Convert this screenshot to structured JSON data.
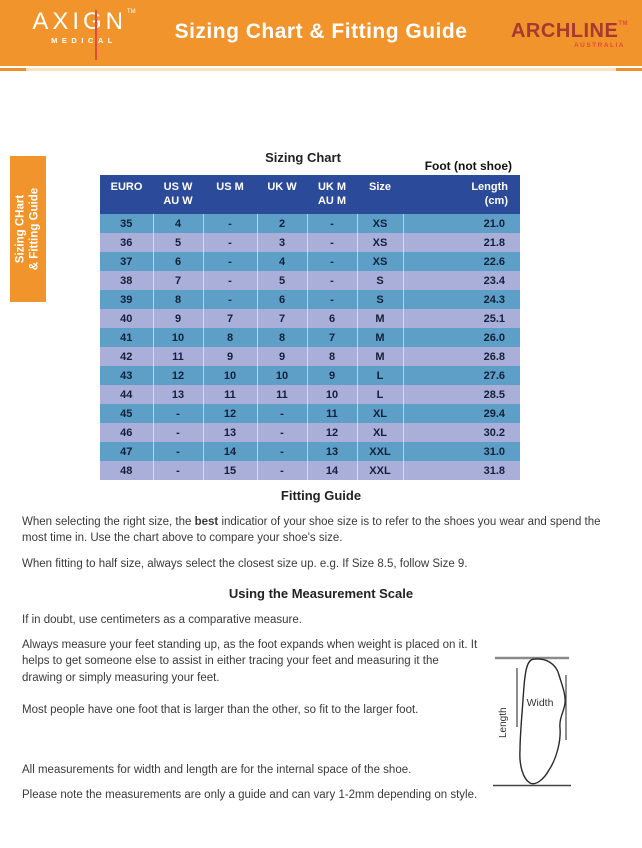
{
  "header": {
    "title": "Sizing Chart & Fitting Guide",
    "brand_left": {
      "name": "AXIGN",
      "tm": "TM",
      "sub": "MEDICAL"
    },
    "brand_right": {
      "name": "ARCHLINE",
      "tm": "TM",
      "sub": "AUSTRALIA"
    }
  },
  "side_tab": {
    "line1": "Sizing CHart",
    "line2": "& Fitting Guide"
  },
  "sizing_chart": {
    "title": "Sizing Chart",
    "foot_note": "Foot (not shoe)",
    "columns": [
      {
        "l1": "EURO",
        "l2": ""
      },
      {
        "l1": "US W",
        "l2": "AU W"
      },
      {
        "l1": "US M",
        "l2": ""
      },
      {
        "l1": "UK W",
        "l2": ""
      },
      {
        "l1": "UK M",
        "l2": "AU M"
      },
      {
        "l1": "Size",
        "l2": ""
      },
      {
        "l1": "Length",
        "l2": "(cm)"
      }
    ],
    "rows": [
      [
        "35",
        "4",
        "-",
        "2",
        "-",
        "XS",
        "21.0"
      ],
      [
        "36",
        "5",
        "-",
        "3",
        "-",
        "XS",
        "21.8"
      ],
      [
        "37",
        "6",
        "-",
        "4",
        "-",
        "XS",
        "22.6"
      ],
      [
        "38",
        "7",
        "-",
        "5",
        "-",
        "S",
        "23.4"
      ],
      [
        "39",
        "8",
        "-",
        "6",
        "-",
        "S",
        "24.3"
      ],
      [
        "40",
        "9",
        "7",
        "7",
        "6",
        "M",
        "25.1"
      ],
      [
        "41",
        "10",
        "8",
        "8",
        "7",
        "M",
        "26.0"
      ],
      [
        "42",
        "11",
        "9",
        "9",
        "8",
        "M",
        "26.8"
      ],
      [
        "43",
        "12",
        "10",
        "10",
        "9",
        "L",
        "27.6"
      ],
      [
        "44",
        "13",
        "11",
        "11",
        "10",
        "L",
        "28.5"
      ],
      [
        "45",
        "-",
        "12",
        "-",
        "11",
        "XL",
        "29.4"
      ],
      [
        "46",
        "-",
        "13",
        "-",
        "12",
        "XL",
        "30.2"
      ],
      [
        "47",
        "-",
        "14",
        "-",
        "13",
        "XXL",
        "31.0"
      ],
      [
        "48",
        "-",
        "15",
        "-",
        "14",
        "XXL",
        "31.8"
      ]
    ]
  },
  "fitting_guide": {
    "heading": "Fitting Guide",
    "p1_pre": "When selecting the right size, the ",
    "p1_bold": "best",
    "p1_post": " indicatior of your shoe size is to refer to the shoes you wear and spend the most time in. Use the chart above to compare your shoe's size.",
    "p2": "When fitting to half size, always select the closest size up. e.g. If Size 8.5, follow Size 9."
  },
  "measurement": {
    "heading": "Using the Measurement Scale",
    "p1": "If in doubt, use centimeters as a comparative measure.",
    "p2": "Always measure your feet standing up, as the foot expands when weight is placed on it. It helps to get someone else to assist in either tracing your feet and measuring it the drawing or simply measuring your feet.",
    "p3": "Most people have one foot that is larger than the other, so fit to the larger foot.",
    "p4": "All measurements for width and length are for the internal space of the shoe.",
    "p5": "Please note the measurements are only a guide and can vary 1-2mm depending on style."
  },
  "foot_diagram": {
    "width_label": "Width",
    "length_label": "Length"
  },
  "colors": {
    "accent_orange": "#F2942C",
    "brand_red": "#E4493B",
    "archline_red": "#A63A30",
    "table_header_blue": "#2B4A9A",
    "row_blue": "#5D9FC7",
    "row_light": "#A9AFD9"
  }
}
